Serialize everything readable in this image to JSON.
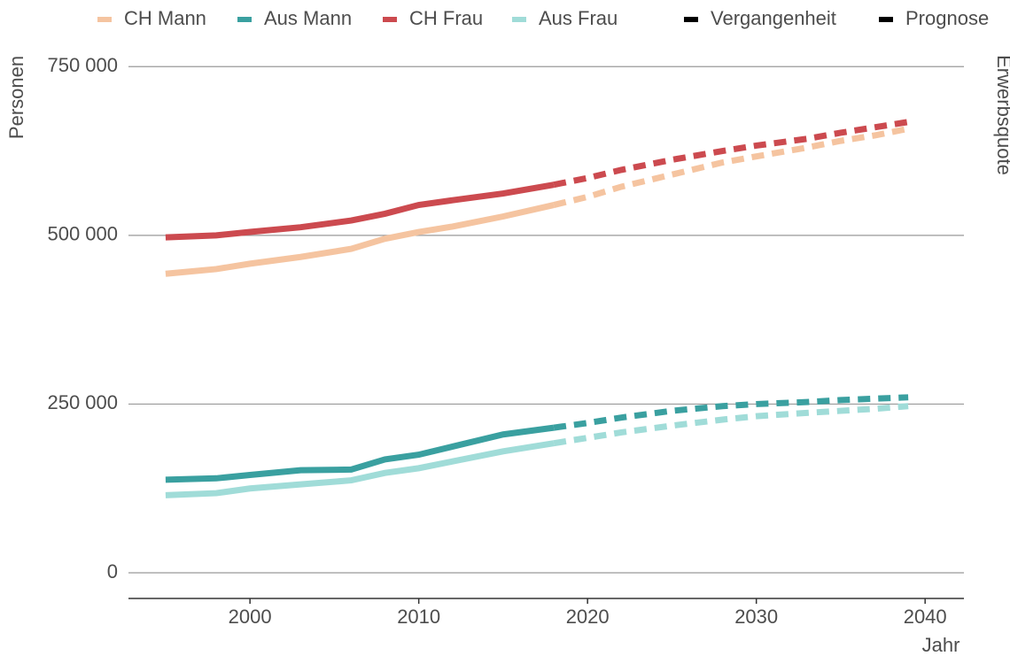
{
  "chart_data": {
    "type": "line",
    "x": [
      1995,
      1998,
      2000,
      2003,
      2006,
      2008,
      2010,
      2012,
      2015,
      2018,
      2020,
      2022,
      2025,
      2028,
      2030,
      2033,
      2035,
      2037,
      2039
    ],
    "series": [
      {
        "name": "CH Mann",
        "color": "#f5c4a0",
        "values": [
          443000,
          450000,
          458000,
          468000,
          480000,
          495000,
          505000,
          513000,
          528000,
          545000,
          null,
          null,
          null,
          null,
          null,
          null,
          null,
          null,
          null
        ],
        "forecast": [
          null,
          null,
          null,
          null,
          null,
          null,
          null,
          null,
          null,
          545000,
          557000,
          572000,
          590000,
          608000,
          617000,
          630000,
          640000,
          648000,
          658000
        ]
      },
      {
        "name": "Aus Mann",
        "color": "#3aa0a0",
        "values": [
          138000,
          140000,
          145000,
          152000,
          153000,
          168000,
          175000,
          187000,
          205000,
          215000,
          null,
          null,
          null,
          null,
          null,
          null,
          null,
          null,
          null
        ],
        "forecast": [
          null,
          null,
          null,
          null,
          null,
          null,
          null,
          null,
          null,
          215000,
          222000,
          230000,
          240000,
          247000,
          250000,
          253000,
          256000,
          258000,
          260000
        ]
      },
      {
        "name": "CH Frau",
        "color": "#cc4a4f",
        "values": [
          497000,
          500000,
          505000,
          512000,
          522000,
          532000,
          545000,
          552000,
          562000,
          575000,
          null,
          null,
          null,
          null,
          null,
          null,
          null,
          null,
          null
        ],
        "forecast": [
          null,
          null,
          null,
          null,
          null,
          null,
          null,
          null,
          null,
          575000,
          585000,
          597000,
          612000,
          625000,
          633000,
          643000,
          652000,
          660000,
          668000
        ]
      },
      {
        "name": "Aus Frau",
        "color": "#a0dcd8",
        "values": [
          115000,
          118000,
          125000,
          131000,
          137000,
          148000,
          155000,
          165000,
          180000,
          192000,
          null,
          null,
          null,
          null,
          null,
          null,
          null,
          null,
          null
        ],
        "forecast": [
          null,
          null,
          null,
          null,
          null,
          null,
          null,
          null,
          null,
          192000,
          200000,
          208000,
          218000,
          227000,
          232000,
          237000,
          240000,
          243000,
          247000
        ]
      }
    ],
    "linetypes": [
      "Vergangenheit",
      "Prognose"
    ],
    "xlabel": "Jahr",
    "ylabel": "Personen",
    "y2label": "Erwerbsquote",
    "xlim": [
      1992.8,
      2042.3
    ],
    "xticks": [
      2000,
      2010,
      2020,
      2030,
      2040
    ],
    "ylim": [
      -38000,
      770000
    ],
    "yticks": [
      0,
      {
        "value": 250000,
        "label": "250 000"
      },
      {
        "value": 500000,
        "label": "500 000"
      },
      {
        "value": 750000,
        "label": "750 000"
      }
    ],
    "grid": true,
    "legend": "top"
  }
}
